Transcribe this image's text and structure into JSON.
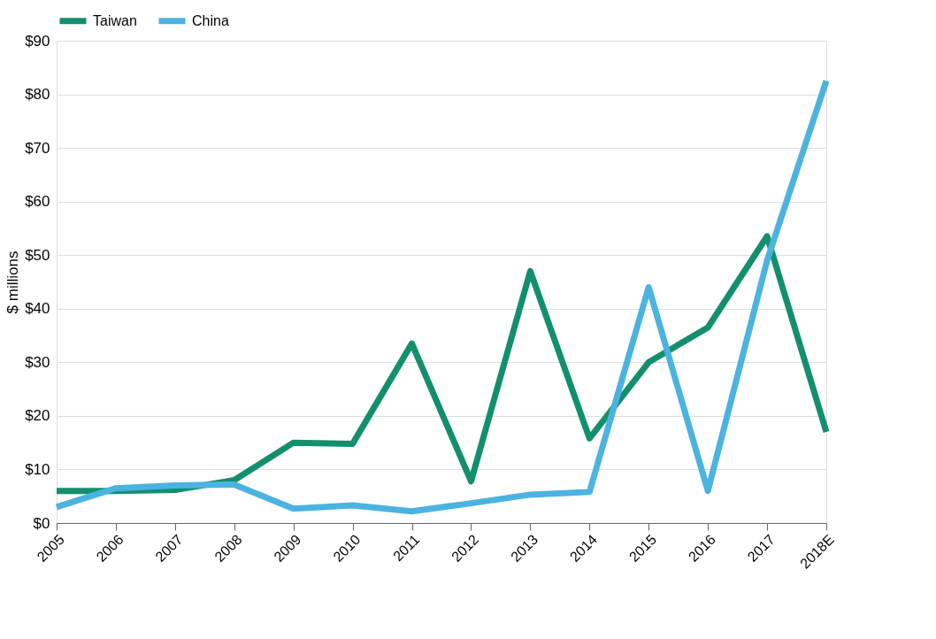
{
  "chart_data": {
    "type": "line",
    "ylabel": "$ millions",
    "categories": [
      "2005",
      "2006",
      "2007",
      "2008",
      "2009",
      "2010",
      "2011",
      "2012",
      "2013",
      "2014",
      "2015",
      "2016",
      "2017",
      "2018E"
    ],
    "series": [
      {
        "name": "Taiwan",
        "color": "#138f6e",
        "values": [
          6,
          6,
          6.2,
          8,
          15,
          14.8,
          33.5,
          7.8,
          47,
          15.8,
          30,
          36.5,
          53.5,
          17
        ]
      },
      {
        "name": "China",
        "color": "#4bb3e0",
        "values": [
          3,
          6.5,
          7,
          7.2,
          2.7,
          3.3,
          2.2,
          3.7,
          5.3,
          5.8,
          44,
          6,
          49,
          82.5
        ]
      }
    ],
    "ylim": [
      0,
      90
    ],
    "yticks": [
      {
        "value": 0,
        "label": "$0"
      },
      {
        "value": 10,
        "label": "$10"
      },
      {
        "value": 20,
        "label": "$20"
      },
      {
        "value": 30,
        "label": "$30"
      },
      {
        "value": 40,
        "label": "$40"
      },
      {
        "value": 50,
        "label": "$50"
      },
      {
        "value": 60,
        "label": "$60"
      },
      {
        "value": 70,
        "label": "$70"
      },
      {
        "value": 80,
        "label": "$80"
      },
      {
        "value": 90,
        "label": "$90"
      }
    ],
    "grid": "y",
    "legend": "top left",
    "marker": "none",
    "line_style": "solid"
  }
}
